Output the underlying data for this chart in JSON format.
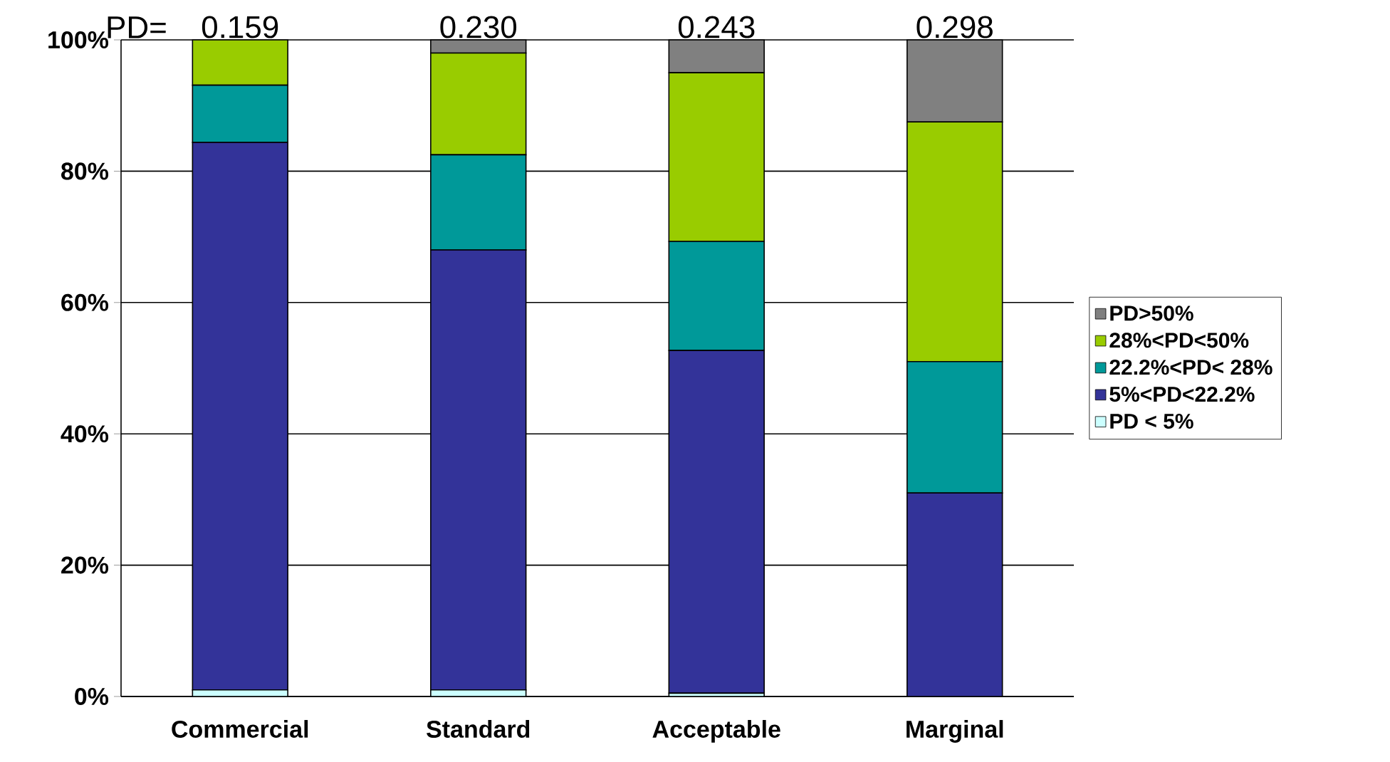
{
  "chart_data": {
    "type": "bar",
    "stacked": true,
    "categories": [
      "Commercial",
      "Standard",
      "Acceptable",
      "Marginal"
    ],
    "series": [
      {
        "name": "PD < 5%",
        "color": "#ccffff",
        "values": [
          1,
          1,
          0.5,
          0
        ]
      },
      {
        "name": "5%<PD<22.2%",
        "color": "#333399",
        "values": [
          83.4,
          67,
          52.2,
          31
        ]
      },
      {
        "name": "22.2%<PD< 28%",
        "color": "#009999",
        "values": [
          8.7,
          14.5,
          16.6,
          20
        ]
      },
      {
        "name": "28%<PD<50%",
        "color": "#99cc00",
        "values": [
          6.9,
          15.5,
          25.7,
          36.5
        ]
      },
      {
        "name": "PD>50%",
        "color": "#808080",
        "values": [
          0,
          2,
          5,
          12.5
        ]
      }
    ],
    "ylim": [
      0,
      100
    ],
    "yticks": [
      {
        "value": 0,
        "label": "0%"
      },
      {
        "value": 20,
        "label": "20%"
      },
      {
        "value": 40,
        "label": "40%"
      },
      {
        "value": 60,
        "label": "60%"
      },
      {
        "value": 80,
        "label": "80%"
      },
      {
        "value": 100,
        "label": "100%"
      }
    ],
    "grid": "y",
    "legend": "right",
    "annotations": [
      "PD=",
      "0.159",
      "0.230",
      "0.243",
      "0.298"
    ]
  }
}
